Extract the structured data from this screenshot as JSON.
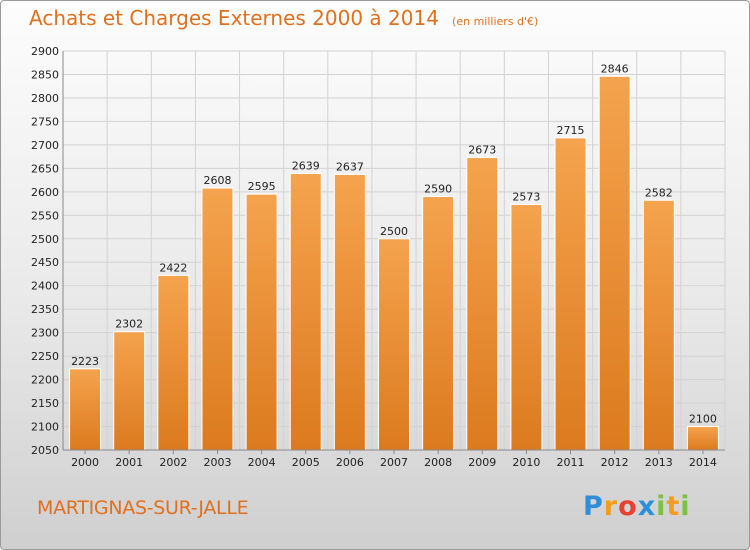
{
  "header": {
    "title": "Achats et Charges Externes 2000 à 2014",
    "unit": "(en milliers d'€)"
  },
  "footer": {
    "city": "MARTIGNAS-SUR-JALLE",
    "logo_text": "Proxiti",
    "logo_letters": [
      {
        "char": "P",
        "color": "#2e8fd8"
      },
      {
        "char": "r",
        "color": "#f39c1f"
      },
      {
        "char": "o",
        "color": "#e8412f"
      },
      {
        "char": "x",
        "color": "#2e8fd8"
      },
      {
        "char": "i",
        "color": "#7cc242"
      },
      {
        "char": "t",
        "color": "#f39c1f"
      },
      {
        "char": "i",
        "color": "#7cc242"
      }
    ]
  },
  "colors": {
    "accent": "#e0701e",
    "bar_light": "#f5a34e",
    "bar_dark": "#dc7a1e"
  },
  "chart_data": {
    "type": "bar",
    "title": "Achats et Charges Externes 2000 à 2014",
    "subtitle": "(en milliers d'€)",
    "categories": [
      "2000",
      "2001",
      "2002",
      "2003",
      "2004",
      "2005",
      "2006",
      "2007",
      "2008",
      "2009",
      "2010",
      "2011",
      "2012",
      "2013",
      "2014"
    ],
    "values": [
      2223,
      2302,
      2422,
      2608,
      2595,
      2639,
      2637,
      2500,
      2590,
      2673,
      2573,
      2715,
      2846,
      2582,
      2100
    ],
    "ylim": [
      2050,
      2900
    ],
    "yticks": [
      2050,
      2100,
      2150,
      2200,
      2250,
      2300,
      2350,
      2400,
      2450,
      2500,
      2550,
      2600,
      2650,
      2700,
      2750,
      2800,
      2850,
      2900
    ],
    "grid": true,
    "xlabel": "",
    "ylabel": ""
  }
}
